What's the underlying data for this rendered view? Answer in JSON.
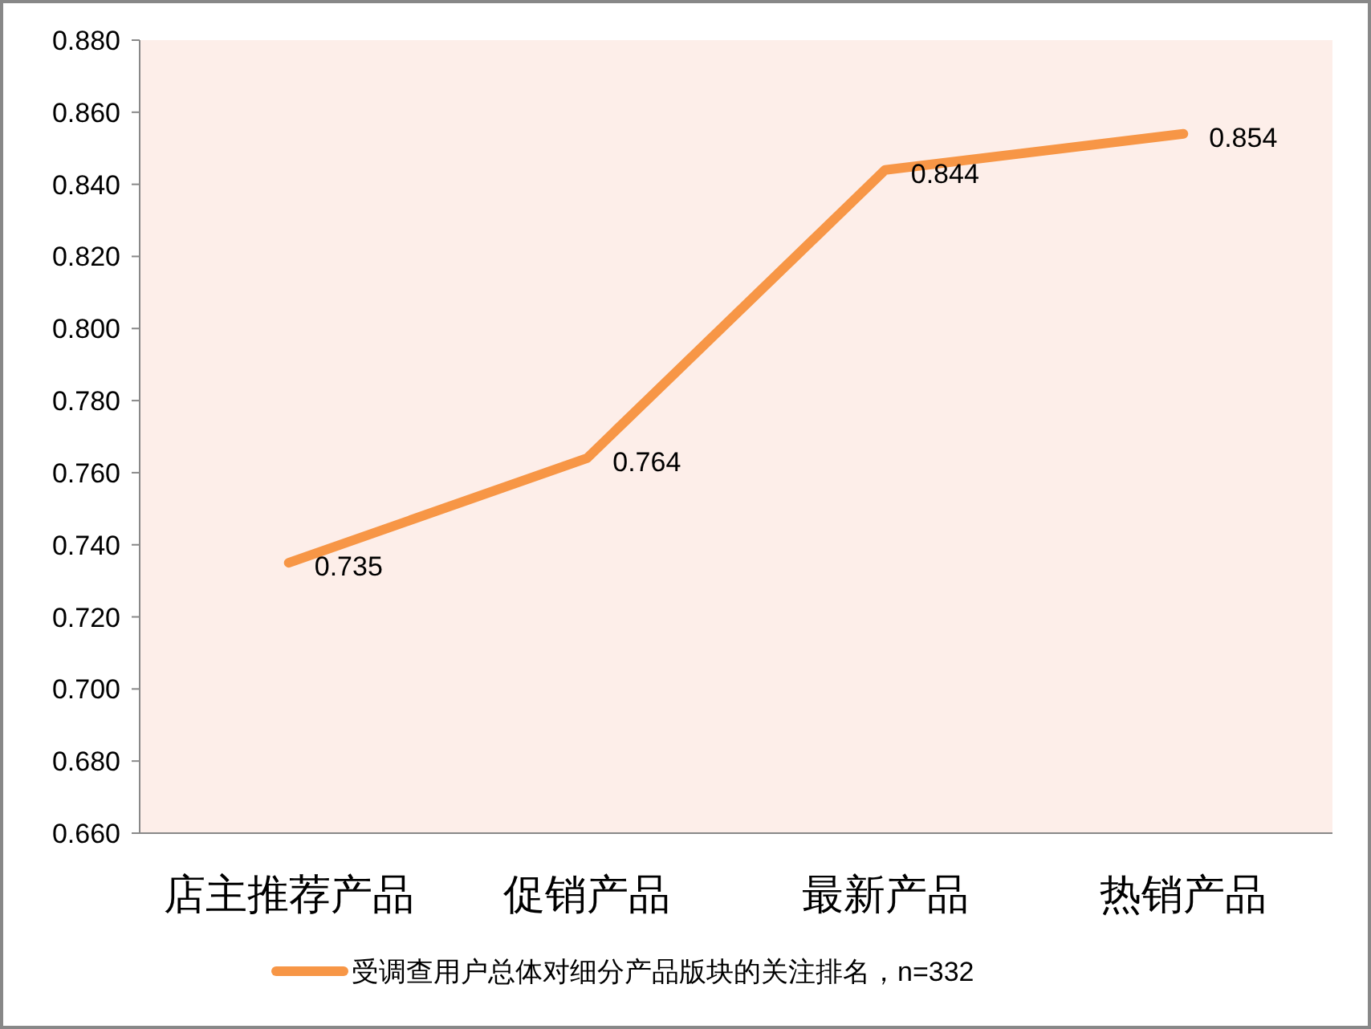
{
  "chart_data": {
    "type": "line",
    "categories": [
      "店主推荐产品",
      "促销产品",
      "最新产品",
      "热销产品"
    ],
    "series": [
      {
        "name": "受调查用户总体对细分产品版块的关注排名，n=332",
        "color": "#f79646",
        "values": [
          0.735,
          0.764,
          0.844,
          0.854
        ]
      }
    ],
    "ylim": [
      0.66,
      0.88
    ],
    "yticks": [
      {
        "value": 0.66,
        "label": "0.660"
      },
      {
        "value": 0.68,
        "label": "0.680"
      },
      {
        "value": 0.7,
        "label": "0.700"
      },
      {
        "value": 0.72,
        "label": "0.720"
      },
      {
        "value": 0.74,
        "label": "0.740"
      },
      {
        "value": 0.76,
        "label": "0.760"
      },
      {
        "value": 0.78,
        "label": "0.780"
      },
      {
        "value": 0.8,
        "label": "0.800"
      },
      {
        "value": 0.82,
        "label": "0.820"
      },
      {
        "value": 0.84,
        "label": "0.840"
      },
      {
        "value": 0.86,
        "label": "0.860"
      },
      {
        "value": 0.88,
        "label": "0.880"
      }
    ],
    "data_labels": true,
    "legend": "bottom",
    "grid": false,
    "marker": "none",
    "line_style": "solid"
  }
}
